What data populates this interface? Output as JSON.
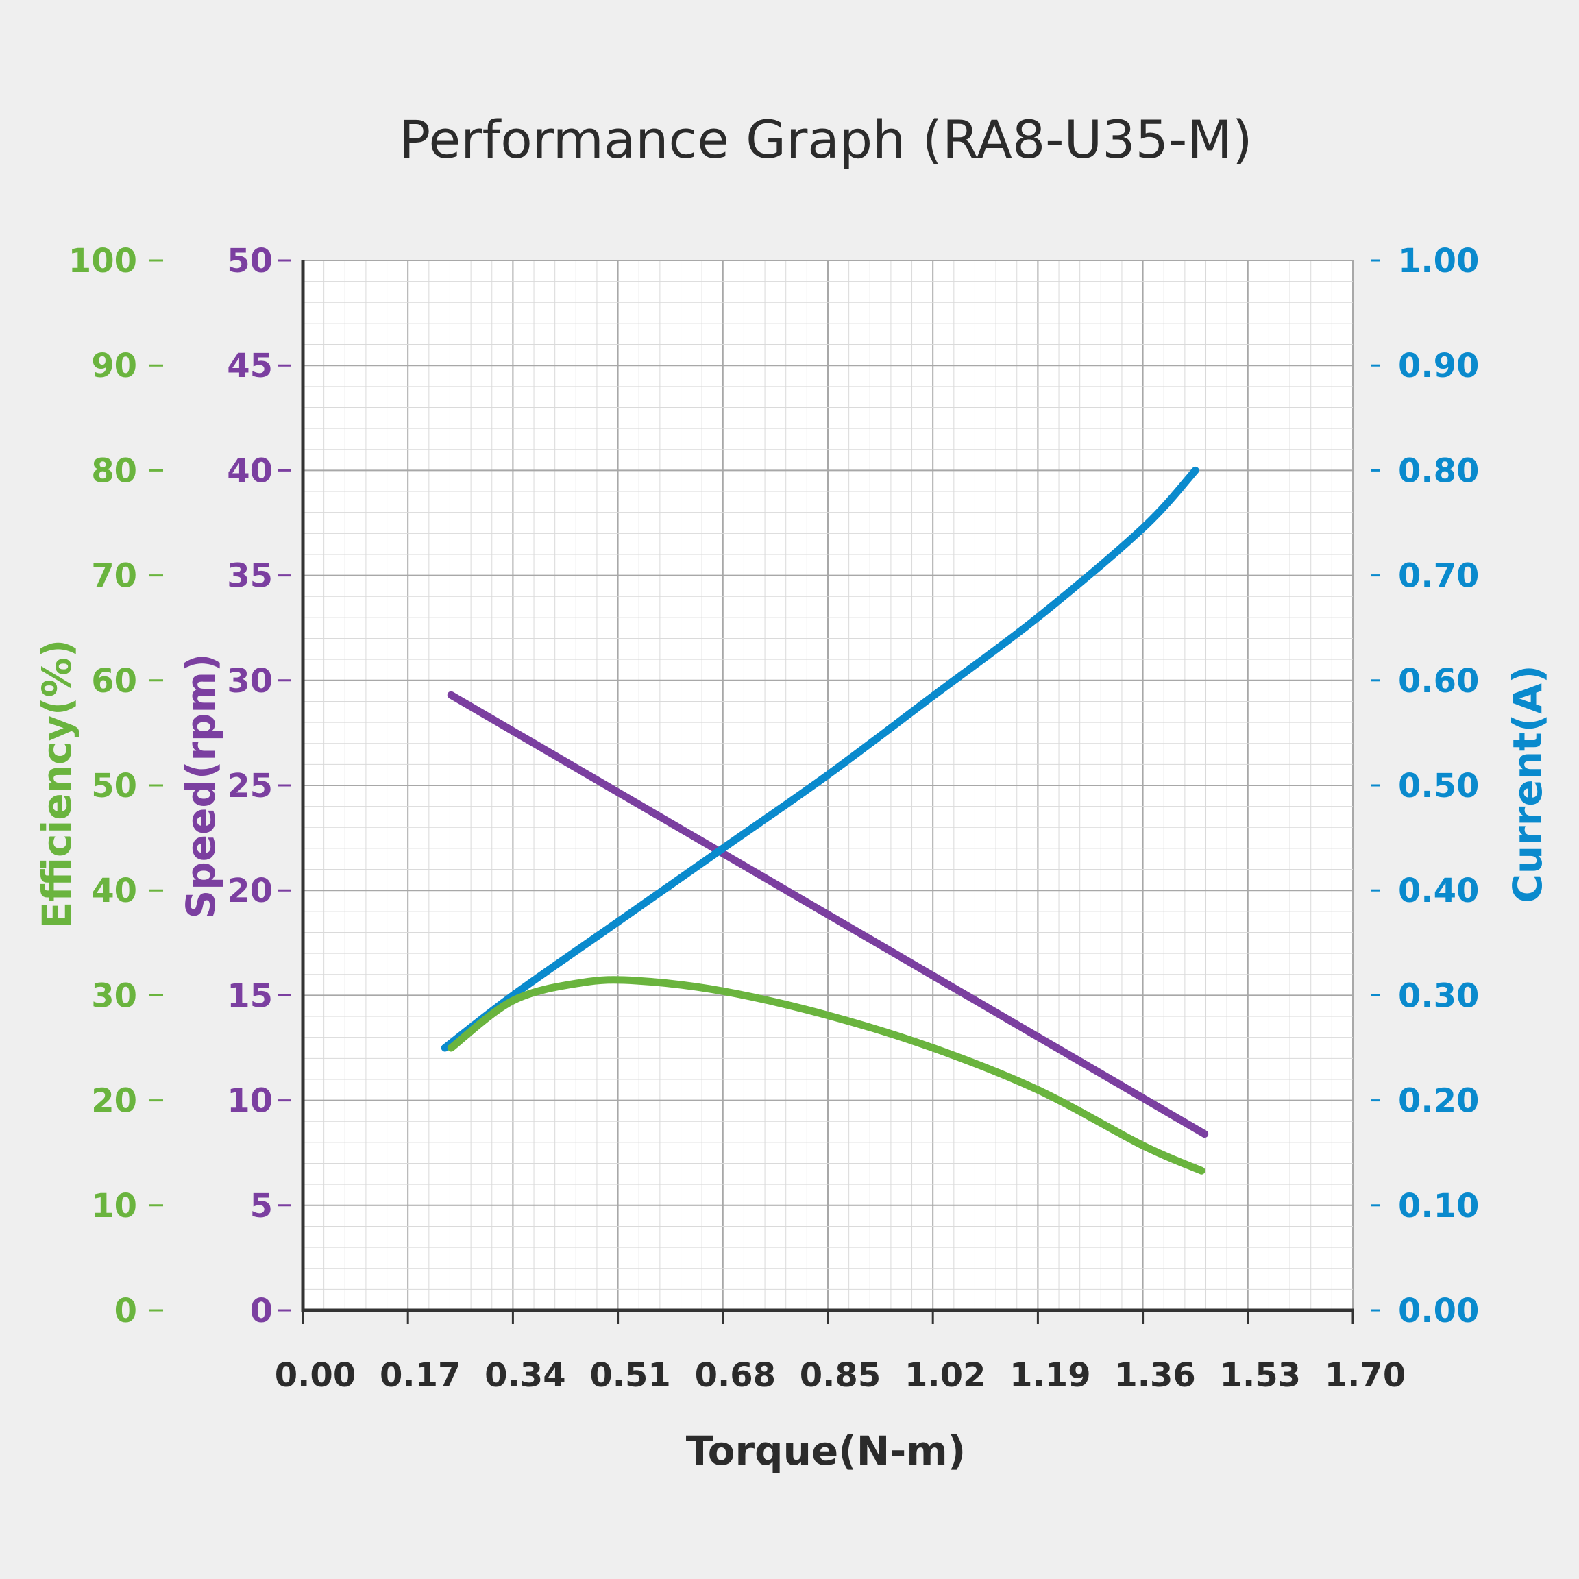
{
  "colors": {
    "background": "#efefef",
    "plot_background": "#ffffff",
    "efficiency": "#6ab43e",
    "speed": "#7b3fa0",
    "current": "#0a8acd",
    "axis": "#333333",
    "text": "#2b2b2b"
  },
  "chart_data": {
    "type": "line",
    "title": "Performance Graph  (RA8-U35-M)",
    "xlabel": "Torque(N-m)",
    "x_ticks": [
      "0.00",
      "0.17",
      "0.34",
      "0.51",
      "0.68",
      "0.85",
      "1.02",
      "1.19",
      "1.36",
      "1.53",
      "1.70"
    ],
    "xlim": [
      0,
      1.7
    ],
    "grid": true,
    "axes": {
      "efficiency": {
        "label": "Efficiency(%)",
        "ylim": [
          0,
          100
        ],
        "ticks": [
          "0",
          "10",
          "20",
          "30",
          "40",
          "50",
          "60",
          "70",
          "80",
          "90",
          "100"
        ]
      },
      "speed": {
        "label": "Speed(rpm)",
        "ylim": [
          0,
          50
        ],
        "ticks": [
          "0",
          "5",
          "10",
          "15",
          "20",
          "25",
          "30",
          "35",
          "40",
          "45",
          "50"
        ]
      },
      "current": {
        "label": "Current(A)",
        "ylim": [
          0,
          1.0
        ],
        "ticks": [
          "0.00",
          "0.10",
          "0.20",
          "0.30",
          "0.40",
          "0.50",
          "0.60",
          "0.70",
          "0.80",
          "0.90",
          "1.00"
        ]
      }
    },
    "series": [
      {
        "name": "Speed",
        "axis": "speed",
        "x": [
          0.24,
          1.46
        ],
        "y": [
          29.3,
          8.4
        ]
      },
      {
        "name": "Current",
        "axis": "current",
        "x": [
          0.23,
          0.34,
          0.51,
          0.68,
          0.85,
          1.02,
          1.19,
          1.36,
          1.445
        ],
        "y": [
          0.25,
          0.3,
          0.37,
          0.44,
          0.51,
          0.585,
          0.66,
          0.745,
          0.8
        ]
      },
      {
        "name": "Efficiency",
        "axis": "efficiency",
        "x": [
          0.24,
          0.34,
          0.45,
          0.54,
          0.68,
          0.85,
          1.02,
          1.19,
          1.36,
          1.455
        ],
        "y": [
          25,
          29.5,
          31.2,
          31.4,
          30.4,
          28.1,
          25,
          21,
          15.7,
          13.3
        ]
      }
    ]
  }
}
